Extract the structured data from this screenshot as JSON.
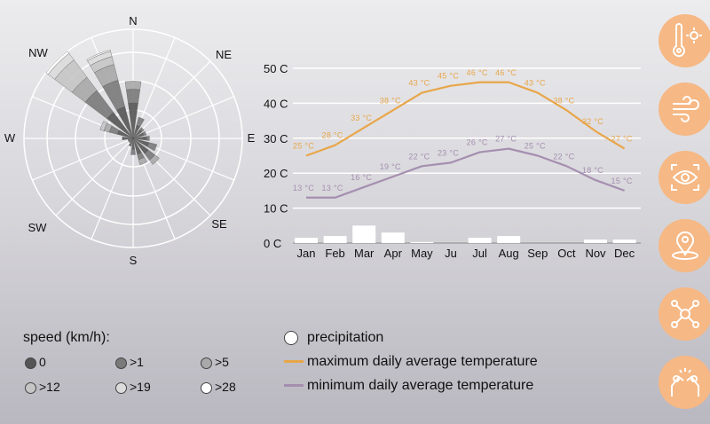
{
  "wind_rose": {
    "directions": [
      "N",
      "NE",
      "E",
      "SE",
      "S",
      "SW",
      "W",
      "NW"
    ],
    "speed_title": "speed  (km/h):",
    "speed_classes": [
      {
        "label": "0",
        "color": "#555555"
      },
      {
        "label": ">1",
        "color": "#7a7a7a"
      },
      {
        "label": ">5",
        "color": "#a9a9a9"
      },
      {
        "label": ">12",
        "color": "#c6c6c6"
      },
      {
        "label": ">19",
        "color": "#dcdcdc"
      },
      {
        "label": ">28",
        "color": "#ffffff"
      }
    ],
    "sectors": [
      {
        "dir": "N",
        "values": [
          1.3,
          0.5,
          0.3
        ]
      },
      {
        "dir": "NNE",
        "values": [
          0.5,
          0.3
        ]
      },
      {
        "dir": "NE",
        "values": [
          0.4,
          0.1
        ]
      },
      {
        "dir": "ENE",
        "values": [
          0.4,
          0.1
        ]
      },
      {
        "dir": "E",
        "values": [
          0.5,
          0.1
        ]
      },
      {
        "dir": "ESE",
        "values": [
          0.6,
          0.3
        ]
      },
      {
        "dir": "SE",
        "values": [
          0.7,
          0.3,
          0.2
        ]
      },
      {
        "dir": "SSE",
        "values": [
          0.6,
          0.2,
          0.2
        ]
      },
      {
        "dir": "S",
        "values": [
          0.4,
          0.2
        ]
      },
      {
        "dir": "SSW",
        "values": [
          0.3
        ]
      },
      {
        "dir": "SW",
        "values": [
          0.2
        ]
      },
      {
        "dir": "WSW",
        "values": [
          0.2
        ]
      },
      {
        "dir": "W",
        "values": [
          0.4
        ]
      },
      {
        "dir": "WNW",
        "values": [
          0.6,
          0.3,
          0.2,
          0.15
        ]
      },
      {
        "dir": "NW",
        "values": [
          1.2,
          1.0,
          0.6,
          0.8,
          0.3,
          0.1
        ]
      },
      {
        "dir": "NNW",
        "values": [
          1.2,
          1.0,
          0.6,
          0.3,
          0.2,
          0.05
        ]
      }
    ],
    "max_value": 4
  },
  "chart_data": {
    "type": "line",
    "categories": [
      "Jan",
      "Feb",
      "Mar",
      "Apr",
      "May",
      "Ju",
      "Jul",
      "Aug",
      "Sep",
      "Oct",
      "Nov",
      "Dec"
    ],
    "yticks": [
      "0 C",
      "10 C",
      "20 C",
      "30 C",
      "40 C",
      "50 C"
    ],
    "ylim": [
      0,
      50
    ],
    "grid": true,
    "series": [
      {
        "name": "maximum daily average temperature",
        "type": "line",
        "color": "#e8a64a",
        "values": [
          25,
          28,
          33,
          38,
          43,
          45,
          46,
          46,
          43,
          38,
          32,
          27
        ]
      },
      {
        "name": "minimum daily average temperature",
        "type": "line",
        "color": "#a58fb0",
        "values": [
          13,
          13,
          16,
          19,
          22,
          23,
          26,
          27,
          25,
          22,
          18,
          15
        ]
      },
      {
        "name": "precipitation",
        "type": "bar",
        "color": "#ffffff",
        "values": [
          1.5,
          2,
          5,
          3,
          0.3,
          0,
          1.5,
          2,
          0,
          0,
          1,
          1
        ]
      }
    ],
    "label_unit": " °C"
  },
  "legend": {
    "precipitation": "precipitation",
    "max": "maximum daily average temperature",
    "min": "minimum daily average temperature"
  },
  "icons": [
    "thermometer-sun-icon",
    "wind-icon",
    "eye-scan-icon",
    "location-pin-icon",
    "network-icon",
    "high-five-icon"
  ],
  "accent": "#f6b884"
}
